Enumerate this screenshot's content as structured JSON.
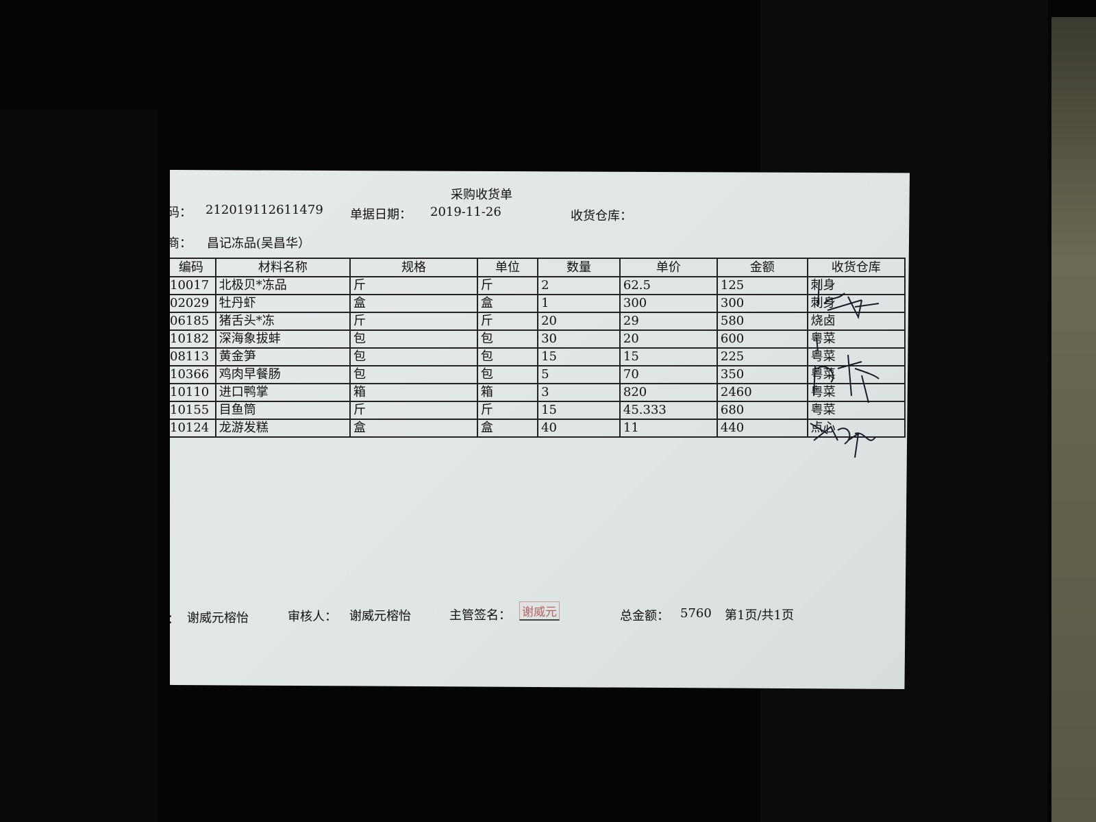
{
  "document": {
    "title": "采购收货单",
    "doc_no_label": "码：",
    "doc_no": "212019112611479",
    "date_label": "单据日期：",
    "date": "2019-11-26",
    "warehouse_label": "收货仓库：",
    "supplier_label": "商：",
    "supplier": "昌记冻品(吴昌华）",
    "columns": [
      "编码",
      "材料名称",
      "规格",
      "单位",
      "数量",
      "单价",
      "金额",
      "收货仓库"
    ],
    "rows": [
      [
        "10017",
        "北极贝*冻品",
        "斤",
        "斤",
        "2",
        "62.5",
        "125",
        "刺身"
      ],
      [
        "02029",
        "牡丹虾",
        "盒",
        "盒",
        "1",
        "300",
        "300",
        "刺身"
      ],
      [
        "06185",
        "猪舌头*冻",
        "斤",
        "斤",
        "20",
        "29",
        "580",
        "烧卤"
      ],
      [
        "10182",
        "深海象拔蚌",
        "包",
        "包",
        "30",
        "20",
        "600",
        "粤菜"
      ],
      [
        "08113",
        "黄金笋",
        "包",
        "包",
        "15",
        "15",
        "225",
        "粤菜"
      ],
      [
        "10366",
        "鸡肉早餐肠",
        "包",
        "包",
        "5",
        "70",
        "350",
        "粤菜"
      ],
      [
        "10110",
        "进口鸭掌",
        "箱",
        "箱",
        "3",
        "820",
        "2460",
        "粤菜"
      ],
      [
        "10155",
        "目鱼筒",
        "斤",
        "斤",
        "15",
        "45.333",
        "680",
        "粤菜"
      ],
      [
        "10124",
        "龙游发糕",
        "盒",
        "盒",
        "40",
        "11",
        "440",
        "点心"
      ]
    ],
    "footer": {
      "maker": "谢威元榕怡",
      "reviewer_label": "审核人：",
      "reviewer": "谢威元榕怡",
      "supervisor_label": "主管签名：",
      "supervisor_stamp": "谢威元",
      "total_label": "总金额：",
      "total": "5760",
      "page": "第1页/共1页"
    }
  }
}
